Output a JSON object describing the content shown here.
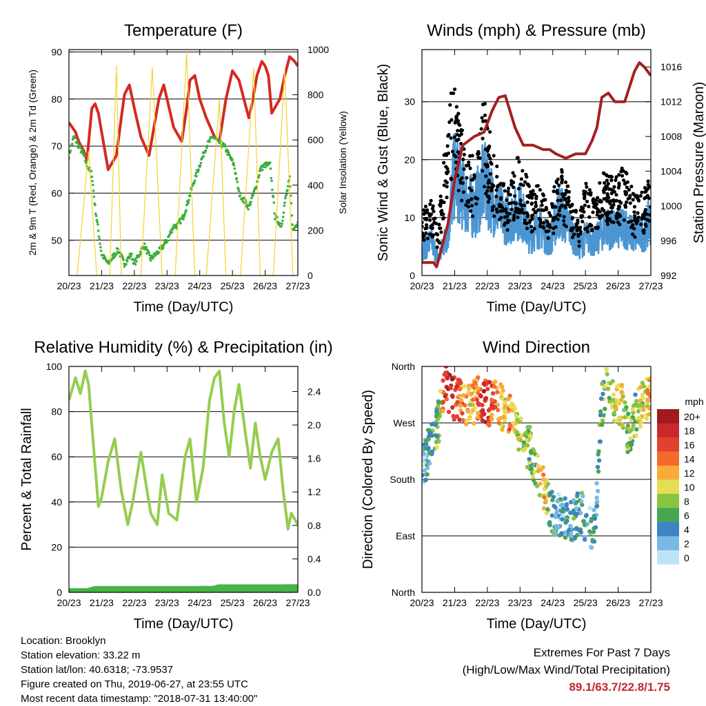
{
  "colors": {
    "temp_red": "#d42a21",
    "temp_orange": "#f08a2a",
    "dewpoint_green": "#3cae3a",
    "solar_yellow": "#f5d22e",
    "wind_blue": "#4b96d2",
    "gust_black": "#000000",
    "pressure_maroon": "#a51f22",
    "rh_lightgreen": "#96cc50",
    "rain_green": "#46b446",
    "extremes_red": "#c1272d"
  },
  "x_ticks": [
    "20/23",
    "21/23",
    "22/23",
    "23/23",
    "24/23",
    "25/23",
    "26/23",
    "27/23"
  ],
  "info": {
    "location": "Location: Brooklyn",
    "elevation": "Station elevation: 33.22 m",
    "latlon": "Station lat/lon: 40.6318; -73.9537",
    "created": "Figure created on Thu, 2019-06-27, at 23:55 UTC",
    "timestamp": "Most recent data timestamp: \"2018-07-31 13:40:00\""
  },
  "extremes": {
    "title": "Extremes For Past 7 Days",
    "subtitle": "(High/Low/Max Wind/Total Precipitation)",
    "values": "89.1/63.7/22.8/1.75"
  },
  "chart_data": [
    {
      "id": "temperature",
      "type": "line",
      "title": "Temperature (F)",
      "xlabel": "Time (Day/UTC)",
      "ylabel": "2m & 9m T (Red, Orange) & 2m Td (Green)",
      "ylabel_right": "Solar Insolation (Yellow)",
      "x_ticks": [
        "20/23",
        "21/23",
        "22/23",
        "23/23",
        "24/23",
        "25/23",
        "26/23",
        "27/23"
      ],
      "xlim": [
        0,
        7
      ],
      "ylim": [
        42.5,
        90.5
      ],
      "y_ticks": [
        50,
        60,
        70,
        80,
        90
      ],
      "ylim_right": [
        0,
        1000
      ],
      "y_ticks_right": [
        0,
        200,
        400,
        600,
        800,
        1000
      ],
      "grid": "horizontal",
      "series": [
        {
          "name": "2m T",
          "color": "#d42a21",
          "x": [
            0,
            0.2,
            0.3,
            0.45,
            0.55,
            0.7,
            0.8,
            0.9,
            1.0,
            1.2,
            1.45,
            1.6,
            1.7,
            1.85,
            2.0,
            2.2,
            2.45,
            2.6,
            2.75,
            2.9,
            3.0,
            3.2,
            3.45,
            3.6,
            3.7,
            3.85,
            4.0,
            4.2,
            4.45,
            4.6,
            4.8,
            5.0,
            5.2,
            5.5,
            5.6,
            5.75,
            5.9,
            6.0,
            6.1,
            6.2,
            6.45,
            6.6,
            6.75,
            6.9,
            7.0
          ],
          "y": [
            75,
            73,
            71,
            69,
            67,
            78,
            79,
            77,
            73,
            65,
            68,
            76,
            81,
            83,
            78,
            72,
            68,
            74,
            80,
            83,
            80,
            74,
            71,
            78,
            84,
            85,
            80,
            76,
            72,
            71,
            80,
            86,
            84,
            76,
            79,
            85,
            88,
            87,
            85,
            77,
            80,
            85,
            89,
            88,
            87
          ]
        },
        {
          "name": "2m Td",
          "color": "#3cae3a",
          "x": [
            0,
            0.15,
            0.3,
            0.45,
            0.55,
            0.7,
            0.8,
            1.0,
            1.2,
            1.5,
            1.7,
            1.9,
            2.0,
            2.3,
            2.5,
            2.8,
            3.0,
            3.2,
            3.3,
            3.5,
            3.8,
            4.0,
            4.2,
            4.4,
            4.55,
            4.75,
            4.9,
            5.05,
            5.2,
            5.5,
            5.7,
            5.85,
            6.0,
            6.15,
            6.3,
            6.5,
            6.6,
            6.75,
            6.85,
            7.0
          ],
          "y": [
            68,
            72,
            70,
            68,
            66,
            64,
            57,
            47,
            45,
            48,
            45,
            47,
            45,
            49,
            46,
            48,
            50,
            53,
            53,
            55,
            62,
            66,
            70,
            72,
            71,
            70,
            68,
            66,
            60,
            57,
            61,
            65,
            66,
            66,
            55,
            53,
            58,
            63,
            52,
            54
          ]
        },
        {
          "name": "Solar Insolation",
          "color": "#f5d22e",
          "axis": "right",
          "x": [
            0.25,
            0.6,
            0.85,
            1.25,
            1.45,
            1.6,
            1.85,
            2.2,
            2.55,
            2.85,
            3.25,
            3.6,
            3.85,
            4.2,
            4.6,
            4.8,
            5.25,
            5.65,
            5.85,
            6.25,
            6.6,
            6.85
          ],
          "y": [
            0,
            550,
            0,
            0,
            930,
            0,
            0,
            0,
            920,
            0,
            0,
            990,
            0,
            0,
            780,
            0,
            0,
            920,
            0,
            0,
            910,
            0
          ]
        }
      ]
    },
    {
      "id": "winds",
      "type": "line",
      "title": "Winds (mph) & Pressure (mb)",
      "xlabel": "Time (Day/UTC)",
      "ylabel": "Sonic Wind & Gust (Blue, Black)",
      "ylabel_right": "Station Pressure (Maroon)",
      "x_ticks": [
        "20/23",
        "21/23",
        "22/23",
        "23/23",
        "24/23",
        "25/23",
        "26/23",
        "27/23"
      ],
      "xlim": [
        0,
        7
      ],
      "ylim": [
        0,
        39
      ],
      "y_ticks": [
        0,
        10,
        20,
        30
      ],
      "ylim_right": [
        992,
        1018
      ],
      "y_ticks_right": [
        992,
        996,
        1000,
        1004,
        1008,
        1012,
        1016
      ],
      "grid": "horizontal",
      "series": [
        {
          "name": "Sonic Wind",
          "color": "#4b96d2",
          "x": [
            0,
            0.3,
            0.5,
            0.8,
            1.0,
            1.3,
            1.6,
            1.9,
            2.2,
            2.6,
            3.0,
            3.3,
            3.6,
            3.9,
            4.2,
            4.5,
            4.8,
            5.0,
            5.3,
            5.6,
            5.9,
            6.2,
            6.5,
            6.8,
            7.0
          ],
          "y": [
            5,
            6,
            3,
            8,
            19,
            14,
            12,
            17,
            13,
            10,
            12,
            7,
            9,
            6,
            12,
            9,
            5,
            7,
            6,
            9,
            8,
            9,
            7,
            8,
            10
          ]
        },
        {
          "name": "Gust",
          "color": "#000000",
          "x": [
            0,
            0.3,
            0.5,
            0.8,
            1.0,
            1.3,
            1.6,
            1.9,
            2.2,
            2.6,
            3.0,
            3.3,
            3.6,
            3.9,
            4.2,
            4.5,
            4.8,
            5.0,
            5.3,
            5.6,
            5.9,
            6.2,
            6.5,
            6.8,
            7.0
          ],
          "y": [
            10,
            12,
            8,
            26,
            30,
            20,
            18,
            27,
            18,
            13,
            19,
            13,
            14,
            10,
            17,
            13,
            9,
            14,
            13,
            16,
            15,
            17,
            12,
            13,
            16
          ]
        },
        {
          "name": "Station Pressure",
          "color": "#a51f22",
          "axis": "right",
          "x": [
            0,
            0.35,
            0.45,
            0.8,
            1.0,
            1.25,
            1.6,
            1.9,
            2.15,
            2.35,
            2.55,
            2.85,
            3.1,
            3.4,
            3.7,
            3.9,
            4.1,
            4.4,
            4.7,
            5.0,
            5.2,
            5.35,
            5.5,
            5.7,
            5.9,
            6.2,
            6.5,
            6.65,
            6.8,
            7.0
          ],
          "y": [
            993.5,
            993.5,
            993,
            998,
            1003,
            1007,
            1008,
            1008.5,
            1011,
            1012.5,
            1012.7,
            1009,
            1007,
            1007,
            1006.5,
            1006.5,
            1006,
            1005.5,
            1006,
            1006,
            1007.5,
            1009,
            1012.5,
            1013,
            1012,
            1012,
            1015.5,
            1016.5,
            1016,
            1015
          ]
        }
      ]
    },
    {
      "id": "humidity",
      "type": "line",
      "title": "Relative Humidity (%) & Precipitation (in)",
      "xlabel": "Time (Day/UTC)",
      "ylabel": "Percent & Total Rainfall",
      "x_ticks": [
        "20/23",
        "21/23",
        "22/23",
        "23/23",
        "24/23",
        "25/23",
        "26/23",
        "27/23"
      ],
      "xlim": [
        0,
        7
      ],
      "ylim": [
        0,
        100
      ],
      "y_ticks": [
        0,
        20,
        40,
        60,
        80,
        100
      ],
      "ylim_right": [
        0,
        2.7
      ],
      "y_ticks_right": [
        "0.0",
        "0.4",
        "0.8",
        "1.2",
        "1.6",
        "2.0",
        "2.4"
      ],
      "grid": "horizontal",
      "series": [
        {
          "name": "Relative Humidity",
          "color": "#96cc50",
          "x": [
            0,
            0.2,
            0.35,
            0.5,
            0.6,
            0.75,
            0.9,
            1.0,
            1.2,
            1.4,
            1.6,
            1.8,
            1.95,
            2.2,
            2.5,
            2.7,
            2.85,
            3.05,
            3.3,
            3.55,
            3.7,
            3.9,
            4.1,
            4.3,
            4.45,
            4.6,
            4.75,
            4.9,
            5.05,
            5.2,
            5.4,
            5.55,
            5.7,
            5.85,
            6.0,
            6.2,
            6.4,
            6.55,
            6.7,
            6.8,
            7.0
          ],
          "y": [
            85,
            95,
            88,
            98,
            92,
            65,
            38,
            42,
            58,
            68,
            45,
            30,
            40,
            62,
            35,
            30,
            52,
            35,
            32,
            60,
            68,
            40,
            55,
            85,
            95,
            98,
            75,
            60,
            80,
            92,
            70,
            55,
            75,
            60,
            50,
            62,
            68,
            45,
            28,
            35,
            30
          ]
        },
        {
          "name": "Total Rainfall",
          "color": "#46b446",
          "x": [
            0,
            0.55,
            0.6,
            0.65,
            0.7,
            0.75,
            0.8,
            0.9,
            1.5,
            2.5,
            3.5,
            4.4,
            4.5,
            4.55,
            4.6,
            5.5,
            6.5,
            7.0
          ],
          "y": [
            0.0,
            0.0,
            0.15,
            0.35,
            0.55,
            0.75,
            0.95,
            1.0,
            1.0,
            1.0,
            1.0,
            1.02,
            1.35,
            1.6,
            1.71,
            1.72,
            1.73,
            1.75
          ]
        }
      ]
    },
    {
      "id": "direction",
      "type": "scatter",
      "title": "Wind Direction",
      "xlabel": "Time (Day/UTC)",
      "ylabel": "Direction (Colored By Speed)",
      "x_ticks": [
        "20/23",
        "21/23",
        "22/23",
        "23/23",
        "24/23",
        "25/23",
        "26/23",
        "27/23"
      ],
      "xlim": [
        0,
        7
      ],
      "ylim": [
        0,
        360
      ],
      "y_ticks": [
        "North",
        "East",
        "South",
        "West",
        "North"
      ],
      "grid": "horizontal",
      "legend": {
        "title": "mph",
        "labels": [
          "20+",
          "18",
          "16",
          "14",
          "12",
          "10",
          "8",
          "6",
          "4",
          "2",
          "0"
        ],
        "colors": [
          "#9e1b1e",
          "#c9292b",
          "#e3402f",
          "#f26b2c",
          "#f8aa3a",
          "#e6dd55",
          "#89c443",
          "#47a556",
          "#3c84c3",
          "#7ab9e3",
          "#bfe3f6"
        ]
      },
      "x": [
        0.05,
        0.1,
        0.2,
        0.35,
        0.5,
        0.7,
        0.9,
        1.1,
        1.3,
        1.5,
        1.7,
        1.9,
        2.1,
        2.3,
        2.5,
        2.7,
        2.9,
        3.1,
        3.3,
        3.5,
        3.7,
        3.9,
        4.1,
        4.3,
        4.5,
        4.7,
        4.9,
        5.1,
        5.3,
        5.5,
        5.7,
        5.9,
        6.1,
        6.3,
        6.5,
        6.7,
        6.9
      ],
      "y": [
        200,
        210,
        225,
        250,
        270,
        330,
        310,
        305,
        300,
        295,
        310,
        305,
        300,
        305,
        290,
        280,
        270,
        240,
        230,
        200,
        170,
        140,
        120,
        130,
        110,
        120,
        130,
        100,
        110,
        300,
        330,
        290,
        300,
        250,
        280,
        300,
        310
      ],
      "speed": [
        3,
        4,
        4,
        6,
        7,
        17,
        19,
        16,
        12,
        11,
        14,
        18,
        15,
        12,
        10,
        13,
        9,
        8,
        7,
        8,
        12,
        6,
        4,
        3,
        5,
        4,
        5,
        3,
        4,
        6,
        8,
        9,
        10,
        8,
        7,
        9,
        11
      ]
    }
  ]
}
